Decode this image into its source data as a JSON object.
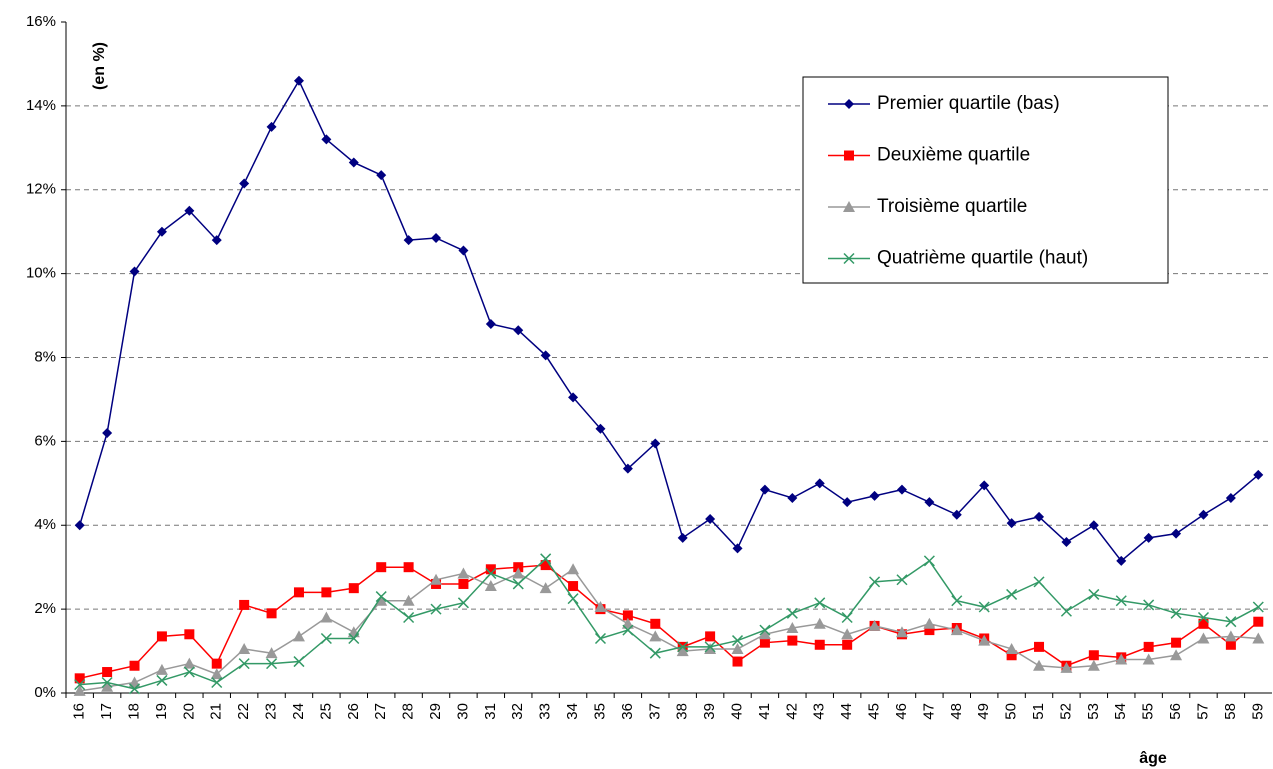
{
  "chart_data": {
    "type": "line",
    "y_label": "(en %)",
    "x_label": "âge",
    "categories": [
      "16",
      "17",
      "18",
      "19",
      "20",
      "21",
      "22",
      "23",
      "24",
      "25",
      "26",
      "27",
      "28",
      "29",
      "30",
      "31",
      "32",
      "33",
      "34",
      "35",
      "36",
      "37",
      "38",
      "39",
      "40",
      "41",
      "42",
      "43",
      "44",
      "45",
      "46",
      "47",
      "48",
      "49",
      "50",
      "51",
      "52",
      "53",
      "54",
      "55",
      "56",
      "57",
      "58",
      "59"
    ],
    "ylim": [
      0,
      16
    ],
    "yticks": [
      {
        "value": 0,
        "label": "0%"
      },
      {
        "value": 2,
        "label": "2%"
      },
      {
        "value": 4,
        "label": "4%"
      },
      {
        "value": 6,
        "label": "6%"
      },
      {
        "value": 8,
        "label": "8%"
      },
      {
        "value": 10,
        "label": "10%"
      },
      {
        "value": 12,
        "label": "12%"
      },
      {
        "value": 14,
        "label": "14%"
      },
      {
        "value": 16,
        "label": "16%"
      }
    ],
    "grid": true,
    "legend": "upper right",
    "series": [
      {
        "name": "Premier quartile (bas)",
        "color": "#000080",
        "marker": "diamond",
        "values": [
          4.0,
          6.2,
          10.05,
          11.0,
          11.5,
          10.8,
          12.15,
          13.5,
          14.6,
          13.2,
          12.65,
          12.35,
          10.8,
          10.85,
          10.55,
          8.8,
          8.65,
          8.05,
          7.05,
          6.3,
          5.35,
          5.95,
          3.7,
          4.15,
          3.45,
          4.85,
          4.65,
          5.0,
          4.55,
          4.7,
          4.85,
          4.55,
          4.25,
          4.95,
          4.05,
          4.2,
          3.6,
          4.0,
          3.15,
          3.7,
          3.8,
          4.25,
          4.65,
          5.2
        ]
      },
      {
        "name": "Deuxième quartile",
        "color": "#ff0000",
        "marker": "square",
        "values": [
          0.35,
          0.5,
          0.65,
          1.35,
          1.4,
          0.7,
          2.1,
          1.9,
          2.4,
          2.4,
          2.5,
          3.0,
          3.0,
          2.6,
          2.6,
          2.95,
          3.0,
          3.05,
          2.55,
          2.0,
          1.85,
          1.65,
          1.1,
          1.35,
          0.75,
          1.2,
          1.25,
          1.15,
          1.15,
          1.6,
          1.4,
          1.5,
          1.55,
          1.3,
          0.9,
          1.1,
          0.65,
          0.9,
          0.85,
          1.1,
          1.2,
          1.65,
          1.15,
          1.7
        ]
      },
      {
        "name": "Troisième quartile",
        "color": "#999999",
        "marker": "triangle",
        "values": [
          0.05,
          0.15,
          0.25,
          0.55,
          0.7,
          0.45,
          1.05,
          0.95,
          1.35,
          1.8,
          1.45,
          2.2,
          2.2,
          2.7,
          2.85,
          2.55,
          2.85,
          2.5,
          2.95,
          2.05,
          1.65,
          1.35,
          1.0,
          1.05,
          1.05,
          1.4,
          1.55,
          1.65,
          1.4,
          1.6,
          1.45,
          1.65,
          1.5,
          1.25,
          1.05,
          0.65,
          0.6,
          0.65,
          0.8,
          0.8,
          0.9,
          1.3,
          1.35,
          1.3
        ]
      },
      {
        "name": "Quatrième quartile (haut)",
        "color": "#339966",
        "marker": "x",
        "values": [
          0.2,
          0.25,
          0.1,
          0.3,
          0.5,
          0.25,
          0.7,
          0.7,
          0.75,
          1.3,
          1.3,
          2.3,
          1.8,
          2.0,
          2.15,
          2.85,
          2.6,
          3.2,
          2.25,
          1.3,
          1.5,
          0.95,
          1.1,
          1.1,
          1.25,
          1.5,
          1.9,
          2.15,
          1.8,
          2.65,
          2.7,
          3.15,
          2.2,
          2.05,
          2.35,
          2.65,
          1.95,
          2.35,
          2.2,
          2.1,
          1.9,
          1.8,
          1.7,
          2.05
        ]
      }
    ]
  }
}
